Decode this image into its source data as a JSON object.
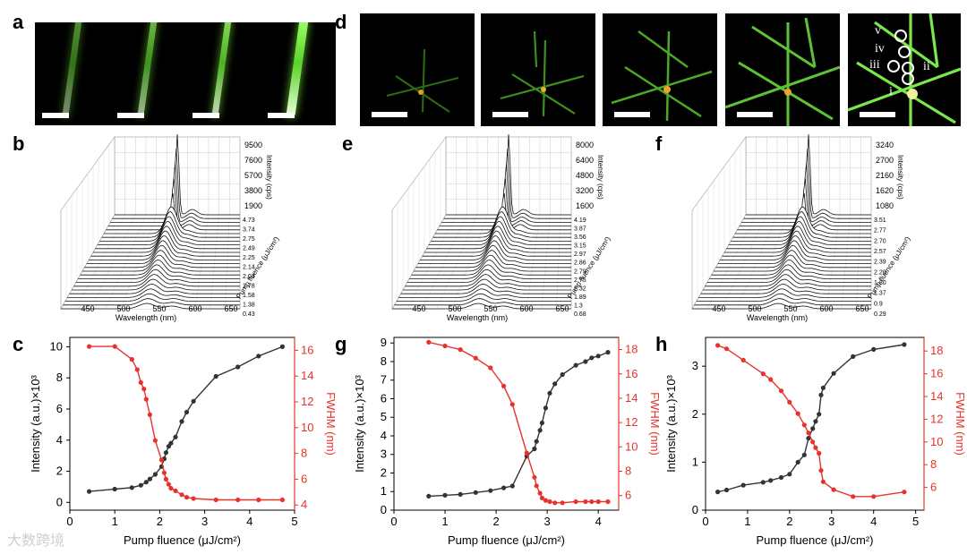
{
  "labels": {
    "a": "a",
    "b": "b",
    "c": "c",
    "d": "d",
    "e": "e",
    "f": "f",
    "g": "g",
    "h": "h"
  },
  "markers": {
    "i": "i",
    "ii": "ii",
    "iii": "iii",
    "iv": "iv",
    "v": "v"
  },
  "watermark": "大数跨境",
  "waterfalls": [
    {
      "id": "b",
      "xlabel": "Wavelength (nm)",
      "x_ticks": [
        "450",
        "500",
        "550",
        "600",
        "650"
      ],
      "zlabel": "Intensity (cps)",
      "z_ticks": [
        "9500",
        "7600",
        "5700",
        "3800",
        "1900"
      ],
      "ylabel": "Pump fluence (μJ/cm²)",
      "y_ticks": [
        "4.73",
        "3.74",
        "2.75",
        "2.49",
        "2.25",
        "2.14",
        "2.04",
        "1.78",
        "1.58",
        "1.38",
        "0.43"
      ]
    },
    {
      "id": "e",
      "xlabel": "Wavelength (nm)",
      "x_ticks": [
        "450",
        "500",
        "550",
        "600",
        "650"
      ],
      "zlabel": "Intensity (cps)",
      "z_ticks": [
        "8000",
        "6400",
        "4800",
        "3200",
        "1600"
      ],
      "ylabel": "Pump fluence (μJ/cm²)",
      "y_ticks": [
        "4.19",
        "3.87",
        "3.56",
        "3.15",
        "2.97",
        "2.86",
        "2.79",
        "2.75",
        "2.32",
        "1.89",
        "1.3",
        "0.68"
      ]
    },
    {
      "id": "f",
      "xlabel": "Wavelength (nm)",
      "x_ticks": [
        "450",
        "500",
        "550",
        "600",
        "650"
      ],
      "zlabel": "Intensity (cps)",
      "z_ticks": [
        "3240",
        "2700",
        "2160",
        "1620",
        "1080"
      ],
      "ylabel": "Pump fluence (μJ/cm²)",
      "y_ticks": [
        "3.51",
        "2.77",
        "2.70",
        "2.57",
        "2.39",
        "2.20",
        "1.80",
        "1.37",
        "0.9",
        "0.29"
      ]
    }
  ],
  "chart_data": [
    {
      "id": "c",
      "type": "line",
      "xlabel": "Pump fluence (μJ/cm²)",
      "ylabel": "Intensity (a.u.)×10³",
      "y2label": "FWHM (nm)",
      "xlim": [
        0,
        5
      ],
      "ylim": [
        -0.5,
        10.6
      ],
      "y2lim": [
        3.6,
        17
      ],
      "x_ticks": [
        0,
        1,
        2,
        3,
        4,
        5
      ],
      "y_ticks": [
        0,
        2,
        4,
        6,
        8,
        10
      ],
      "y2_ticks": [
        4,
        6,
        8,
        10,
        12,
        14,
        16
      ],
      "series": [
        {
          "name": "Intensity",
          "color": "#333333",
          "axis": "left",
          "x": [
            0.43,
            1.0,
            1.38,
            1.58,
            1.7,
            1.78,
            1.9,
            2.04,
            2.1,
            2.14,
            2.2,
            2.25,
            2.35,
            2.49,
            2.6,
            2.75,
            3.25,
            3.74,
            4.2,
            4.73
          ],
          "y": [
            0.7,
            0.85,
            0.95,
            1.1,
            1.3,
            1.5,
            1.8,
            2.3,
            2.8,
            3.2,
            3.6,
            3.8,
            4.2,
            5.2,
            5.8,
            6.5,
            8.1,
            8.7,
            9.4,
            10.0
          ]
        },
        {
          "name": "FWHM",
          "color": "#e8322c",
          "axis": "right",
          "x": [
            0.43,
            1.0,
            1.38,
            1.5,
            1.58,
            1.65,
            1.7,
            1.78,
            1.9,
            2.04,
            2.1,
            2.14,
            2.2,
            2.25,
            2.35,
            2.49,
            2.6,
            2.75,
            3.25,
            3.74,
            4.2,
            4.73
          ],
          "y": [
            16.3,
            16.3,
            15.3,
            14.5,
            13.5,
            13.0,
            12.2,
            11.0,
            9.0,
            7.5,
            6.5,
            6.0,
            5.6,
            5.3,
            5.1,
            4.8,
            4.6,
            4.5,
            4.4,
            4.4,
            4.4,
            4.4
          ]
        }
      ]
    },
    {
      "id": "g",
      "type": "line",
      "xlabel": "Pump fluence (μJ/cm²)",
      "ylabel": "Intensity (a.u.)×10³",
      "y2label": "FWHM (nm)",
      "xlim": [
        0,
        4.4
      ],
      "ylim": [
        0,
        9.3
      ],
      "y2lim": [
        4.8,
        19
      ],
      "x_ticks": [
        0,
        1,
        2,
        3,
        4
      ],
      "y_ticks": [
        0,
        1,
        2,
        3,
        4,
        5,
        6,
        7,
        8,
        9
      ],
      "y2_ticks": [
        6,
        8,
        10,
        12,
        14,
        16,
        18
      ],
      "series": [
        {
          "name": "Intensity",
          "color": "#333333",
          "axis": "left",
          "x": [
            0.68,
            1.0,
            1.3,
            1.6,
            1.89,
            2.15,
            2.32,
            2.6,
            2.75,
            2.79,
            2.86,
            2.9,
            2.97,
            3.05,
            3.15,
            3.3,
            3.56,
            3.75,
            3.87,
            4.0,
            4.19
          ],
          "y": [
            0.75,
            0.8,
            0.85,
            0.95,
            1.05,
            1.2,
            1.3,
            2.9,
            3.3,
            3.7,
            4.3,
            4.7,
            5.5,
            6.3,
            6.8,
            7.3,
            7.8,
            8.0,
            8.2,
            8.3,
            8.5
          ],
          "markers": [
            0.68,
            1.0,
            1.3,
            1.6,
            1.89,
            2.15,
            2.32,
            2.75,
            2.79,
            2.86,
            2.97,
            3.15,
            3.56,
            3.87,
            4.0,
            4.19
          ]
        },
        {
          "name": "FWHM",
          "color": "#e8322c",
          "axis": "right",
          "x": [
            0.68,
            1.0,
            1.3,
            1.6,
            1.89,
            2.15,
            2.32,
            2.6,
            2.75,
            2.79,
            2.86,
            2.9,
            2.97,
            3.05,
            3.15,
            3.3,
            3.56,
            3.75,
            3.87,
            4.0,
            4.19
          ],
          "y": [
            18.6,
            18.3,
            18.0,
            17.3,
            16.5,
            15.0,
            13.5,
            9.5,
            7.5,
            6.8,
            6.2,
            5.8,
            5.6,
            5.5,
            5.4,
            5.4,
            5.5,
            5.5,
            5.5,
            5.5,
            5.5
          ]
        }
      ]
    },
    {
      "id": "h",
      "type": "line",
      "xlabel": "Pump fluence (μJ/cm²)",
      "ylabel": "Intensity (a.u.)×10³",
      "y2label": "FWHM (nm)",
      "xlim": [
        0,
        5.2
      ],
      "ylim": [
        0,
        3.6
      ],
      "y2lim": [
        4,
        19.2
      ],
      "x_ticks": [
        0,
        1,
        2,
        3,
        4,
        5
      ],
      "y_ticks": [
        0,
        1,
        2,
        3
      ],
      "y2_ticks": [
        6,
        8,
        10,
        12,
        14,
        16,
        18
      ],
      "series": [
        {
          "name": "Intensity",
          "color": "#333333",
          "axis": "left",
          "x": [
            0.29,
            0.5,
            0.9,
            1.37,
            1.55,
            1.8,
            2.0,
            2.2,
            2.35,
            2.45,
            2.55,
            2.62,
            2.7,
            2.75,
            2.8,
            3.05,
            3.51,
            4.0,
            4.73
          ],
          "y": [
            0.38,
            0.42,
            0.52,
            0.58,
            0.62,
            0.68,
            0.75,
            1.0,
            1.15,
            1.5,
            1.7,
            1.85,
            2.0,
            2.4,
            2.55,
            2.85,
            3.2,
            3.35,
            3.45
          ]
        },
        {
          "name": "FWHM",
          "color": "#e8322c",
          "axis": "right",
          "x": [
            0.29,
            0.5,
            0.9,
            1.37,
            1.55,
            1.8,
            2.0,
            2.2,
            2.35,
            2.45,
            2.55,
            2.62,
            2.7,
            2.75,
            2.8,
            3.05,
            3.51,
            4.0,
            4.73
          ],
          "y": [
            18.5,
            18.2,
            17.2,
            16.0,
            15.5,
            14.5,
            13.5,
            12.5,
            11.5,
            10.8,
            10.0,
            9.5,
            9.0,
            7.5,
            6.5,
            5.8,
            5.2,
            5.2,
            5.6
          ]
        }
      ]
    }
  ]
}
